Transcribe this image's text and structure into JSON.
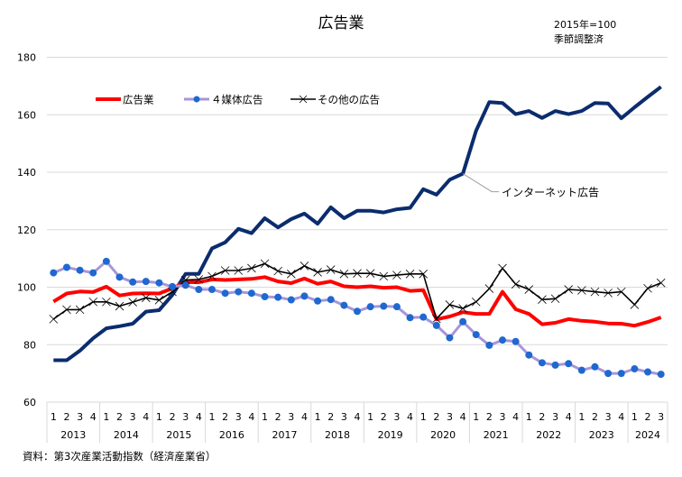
{
  "chart_data": {
    "type": "line",
    "title": "広告業",
    "note_lines": [
      "2015年=100",
      "季節調整済"
    ],
    "xlabel": "",
    "ylabel": "",
    "ylim": [
      60,
      180
    ],
    "yticks": [
      60,
      80,
      100,
      120,
      140,
      160,
      180
    ],
    "grid": true,
    "legend_position": "top-left",
    "x_quarter_labels": [
      "1",
      "2",
      "3",
      "4",
      "1",
      "2",
      "3",
      "4",
      "1",
      "2",
      "3",
      "4",
      "1",
      "2",
      "3",
      "4",
      "1",
      "2",
      "3",
      "4",
      "1",
      "2",
      "3",
      "4",
      "1",
      "2",
      "3",
      "4",
      "1",
      "2",
      "3",
      "4",
      "1",
      "2",
      "3",
      "4",
      "1",
      "2",
      "3",
      "4",
      "1",
      "2",
      "3",
      "4",
      "1",
      "2",
      "3"
    ],
    "x_year_groups": [
      {
        "year": "2013",
        "quarters": 4
      },
      {
        "year": "2014",
        "quarters": 4
      },
      {
        "year": "2015",
        "quarters": 4
      },
      {
        "year": "2016",
        "quarters": 4
      },
      {
        "year": "2017",
        "quarters": 4
      },
      {
        "year": "2018",
        "quarters": 4
      },
      {
        "year": "2019",
        "quarters": 4
      },
      {
        "year": "2020",
        "quarters": 4
      },
      {
        "year": "2021",
        "quarters": 4
      },
      {
        "year": "2022",
        "quarters": 4
      },
      {
        "year": "2023",
        "quarters": 4
      },
      {
        "year": "2024",
        "quarters": 3
      }
    ],
    "series": [
      {
        "name": "広告業",
        "in_legend": true,
        "color": "#ff0000",
        "marker": "none",
        "values": [
          95.0,
          97.8,
          98.5,
          98.3,
          100.2,
          97.1,
          97.8,
          97.9,
          97.8,
          99.6,
          101.8,
          101.7,
          102.7,
          102.5,
          102.7,
          102.9,
          103.5,
          102.0,
          101.4,
          103.0,
          101.2,
          102.0,
          100.3,
          100.0,
          100.3,
          99.8,
          100.0,
          98.7,
          99.0,
          88.8,
          89.8,
          91.3,
          90.7,
          90.7,
          98.4,
          92.3,
          90.7,
          87.1,
          87.6,
          88.9,
          88.3,
          88.0,
          87.4,
          87.3,
          86.6,
          87.9,
          89.5
        ]
      },
      {
        "name": "４媒体広告",
        "in_legend": true,
        "color": "#a896d8",
        "marker_color": "#1f68d0",
        "marker": "circle",
        "values": [
          105.0,
          106.9,
          105.9,
          105.0,
          109.0,
          103.5,
          101.8,
          102.0,
          101.5,
          100.2,
          100.7,
          99.2,
          99.2,
          97.9,
          98.4,
          97.9,
          96.7,
          96.5,
          95.6,
          96.9,
          95.2,
          95.7,
          93.7,
          91.6,
          93.2,
          93.4,
          93.2,
          89.4,
          89.6,
          86.7,
          82.4,
          88.0,
          83.5,
          79.8,
          81.6,
          81.1,
          76.4,
          73.7,
          72.9,
          73.4,
          71.1,
          72.3,
          70.0,
          70.0,
          71.6,
          70.5,
          69.7
        ]
      },
      {
        "name": "その他の広告",
        "in_legend": true,
        "color": "#000000",
        "marker": "x",
        "values": [
          88.9,
          92.2,
          92.2,
          94.9,
          94.9,
          93.4,
          94.8,
          96.3,
          95.5,
          98.4,
          102.5,
          102.7,
          103.8,
          105.8,
          105.8,
          106.6,
          108.2,
          105.6,
          104.6,
          107.4,
          105.2,
          106.1,
          104.6,
          104.8,
          104.8,
          103.8,
          104.2,
          104.6,
          104.6,
          89.0,
          93.9,
          92.6,
          94.9,
          99.5,
          106.6,
          101.0,
          99.2,
          95.7,
          96.0,
          99.2,
          98.9,
          98.4,
          98.0,
          98.4,
          93.9,
          99.6,
          101.5
        ]
      },
      {
        "name": "インターネット広告",
        "in_legend": false,
        "annotation": "インターネット広告",
        "annotation_anchor_index": 31,
        "color": "#0b2c6e",
        "marker": "none",
        "values": [
          74.6,
          74.6,
          77.9,
          82.2,
          85.7,
          86.4,
          87.3,
          91.5,
          92.0,
          97.3,
          104.6,
          104.6,
          113.5,
          115.6,
          120.3,
          118.8,
          124.0,
          120.8,
          123.7,
          125.6,
          122.1,
          127.8,
          124.0,
          126.6,
          126.6,
          126.0,
          127.1,
          127.6,
          134.1,
          132.2,
          137.4,
          139.5,
          154.4,
          164.4,
          164.1,
          160.2,
          161.3,
          158.9,
          161.3,
          160.2,
          161.3,
          164.1,
          163.9,
          158.8,
          162.6,
          166.2,
          169.7
        ]
      }
    ]
  },
  "source": "資料：第3次産業活動指数（経済産業省）",
  "colors": {
    "grid": "#d9d9d9",
    "axis_text": "#000000"
  }
}
